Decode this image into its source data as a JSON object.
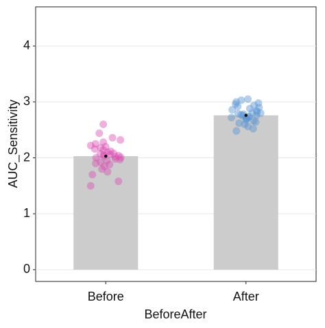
{
  "chart_data": {
    "type": "bar",
    "x_label": "BeforeAfter",
    "y_label": "AUC_Sensitivity",
    "categories": [
      "Before",
      "After"
    ],
    "values": [
      2.03,
      2.76
    ],
    "color": "#cccccc",
    "points": [
      {
        "color": "#d94fb2",
        "values": [
          1.5,
          1.58,
          1.7,
          1.75,
          1.8,
          1.85,
          1.88,
          1.9,
          1.92,
          1.95,
          1.97,
          1.98,
          2.0,
          2.01,
          2.02,
          2.03,
          2.04,
          2.05,
          2.06,
          2.07,
          2.08,
          2.1,
          2.12,
          2.14,
          2.16,
          2.18,
          2.2,
          2.22,
          2.25,
          2.28,
          2.32,
          2.36,
          2.44,
          2.6
        ]
      },
      {
        "color": "#5b95d3",
        "values": [
          2.48,
          2.52,
          2.56,
          2.6,
          2.62,
          2.64,
          2.66,
          2.68,
          2.7,
          2.71,
          2.72,
          2.73,
          2.74,
          2.75,
          2.76,
          2.77,
          2.78,
          2.79,
          2.8,
          2.81,
          2.82,
          2.84,
          2.86,
          2.88,
          2.9,
          2.92,
          2.94,
          2.96,
          2.98,
          3.0,
          3.03,
          3.05
        ]
      }
    ],
    "ylim": [
      -0.21,
      4.7
    ],
    "yticks": [
      0,
      1,
      2,
      3,
      4
    ],
    "grid": true
  }
}
